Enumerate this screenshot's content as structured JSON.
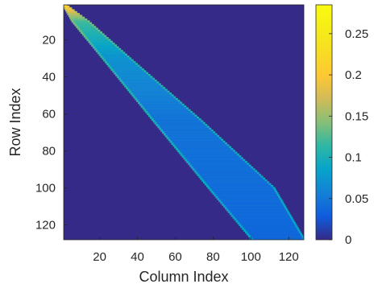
{
  "chart_data": {
    "type": "heatmap",
    "xlabel": "Column Index",
    "ylabel": "Row Index",
    "xlim": [
      1,
      128
    ],
    "ylim": [
      1,
      128
    ],
    "x_ticks": [
      20,
      40,
      60,
      80,
      100,
      120
    ],
    "y_ticks": [
      20,
      40,
      60,
      80,
      100,
      120
    ],
    "colorbar": {
      "colormap": "parula",
      "clim": [
        0,
        0.285
      ],
      "ticks": [
        0,
        0.05,
        0.1,
        0.15,
        0.2,
        0.25
      ],
      "tick_labels": [
        "0",
        "0.05",
        "0.1",
        "0.15",
        "0.2",
        "0.25"
      ]
    },
    "background_value": 0.0,
    "band": {
      "description_values": "nonzero band following the main diagonal; widens with row index",
      "points": [
        {
          "row": 1,
          "col_start": 1,
          "col_end": 2,
          "center_value": 0.22,
          "edge_value": 0.16
        },
        {
          "row": 10,
          "col_start": 6,
          "col_end": 14,
          "center_value": 0.12,
          "edge_value": 0.14
        },
        {
          "row": 30,
          "col_start": 22,
          "col_end": 36,
          "center_value": 0.07,
          "edge_value": 0.11
        },
        {
          "row": 64,
          "col_start": 49,
          "col_end": 74,
          "center_value": 0.045,
          "edge_value": 0.1
        },
        {
          "row": 100,
          "col_start": 78,
          "col_end": 112,
          "center_value": 0.04,
          "edge_value": 0.09
        },
        {
          "row": 128,
          "col_start": 101,
          "col_end": 128,
          "center_value": 0.035,
          "edge_value": 0.085
        }
      ]
    },
    "grid": false
  }
}
